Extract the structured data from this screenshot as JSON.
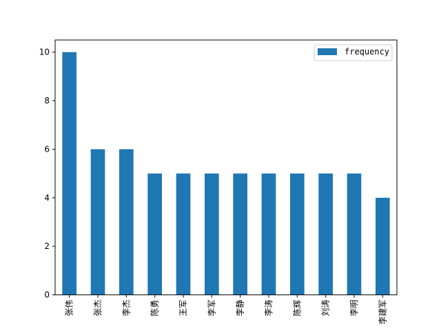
{
  "chart_data": {
    "type": "bar",
    "title": "",
    "xlabel": "",
    "ylabel": "",
    "categories": [
      "张伟",
      "张杰",
      "李杰",
      "陈勇",
      "王军",
      "李军",
      "李静",
      "李涛",
      "陈辉",
      "刘涛",
      "李明",
      "李建军"
    ],
    "series": [
      {
        "name": "frequency",
        "values": [
          10,
          6,
          6,
          5,
          5,
          5,
          5,
          5,
          5,
          5,
          5,
          4
        ],
        "color": "#1f77b4"
      }
    ],
    "ylim": [
      0,
      10.5
    ],
    "yticks": [
      0,
      2,
      4,
      6,
      8,
      10
    ],
    "grid": false,
    "legend_position": "top-right",
    "x_tick_rotation": "vertical"
  }
}
